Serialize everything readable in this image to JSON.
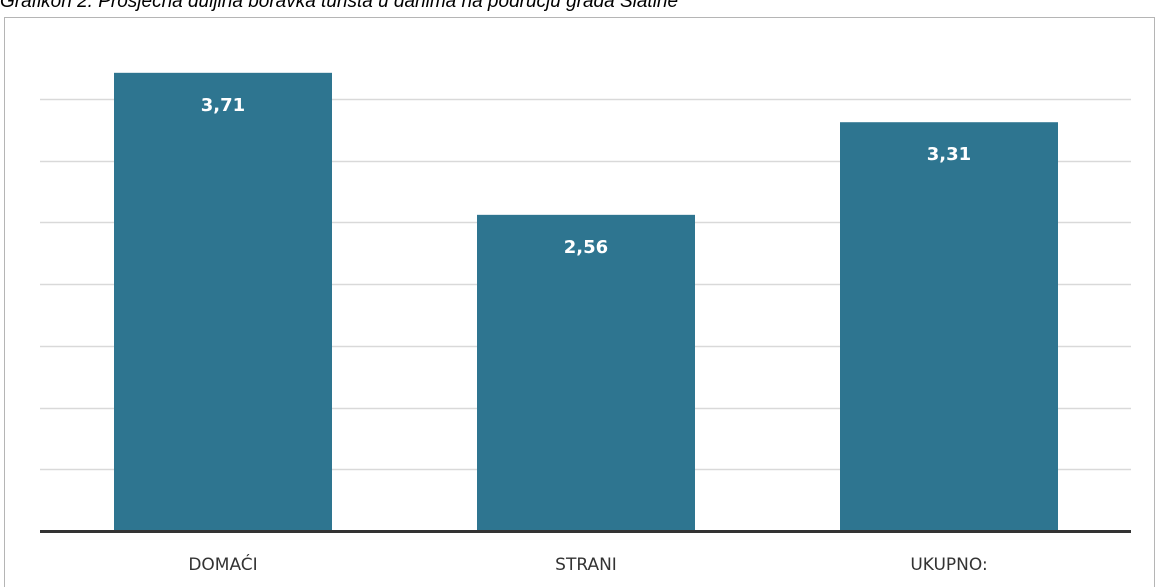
{
  "title": "Grafikon 2. Prosječna duljina boravka turista u danima na području grada Slatine",
  "colors": {
    "bar": "#2e7590",
    "grid": "#d9d9d9",
    "axis": "#333333",
    "bar_label": "#ffffff",
    "category_label": "#333333"
  },
  "chart_data": {
    "type": "bar",
    "title": "Grafikon 2. Prosječna duljina boravka turista u danima na području grada Slatine",
    "categories": [
      "DOMAĆI",
      "STRANI",
      "UKUPNO:"
    ],
    "values": [
      3.71,
      2.56,
      3.31
    ],
    "value_labels": [
      "3,71",
      "2,56",
      "3,31"
    ],
    "xlabel": "",
    "ylabel": "",
    "ylim": [
      0,
      4
    ],
    "grid": true,
    "legend": "none"
  }
}
